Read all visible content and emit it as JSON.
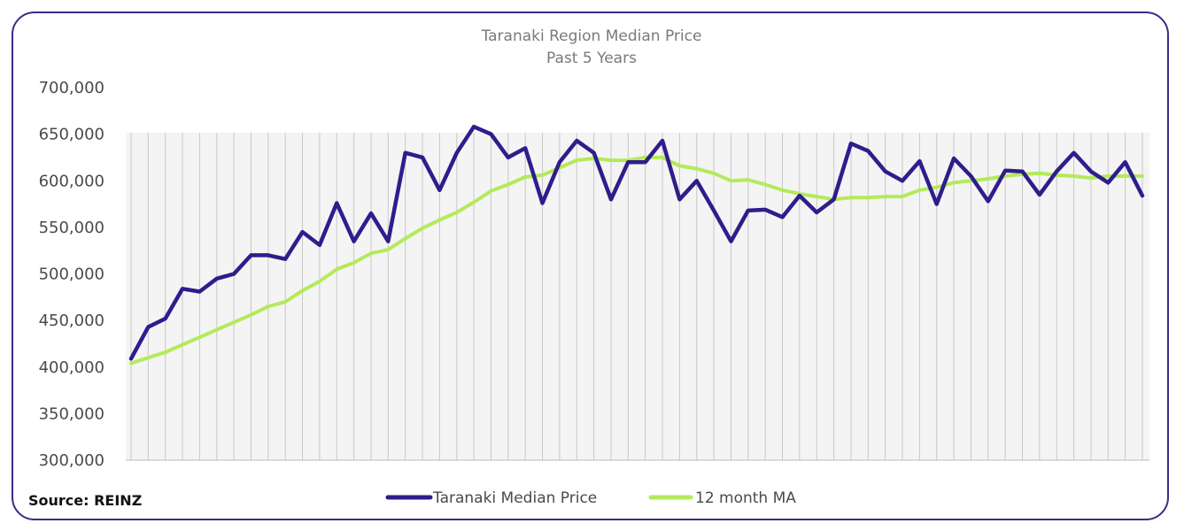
{
  "source": "Source: REINZ",
  "chart_data": {
    "type": "line",
    "title": "Taranaki Region Median Price",
    "subtitle": "Past 5 Years",
    "ylim": [
      300000,
      700000
    ],
    "yticks": [
      300000,
      350000,
      400000,
      450000,
      500000,
      550000,
      600000,
      650000,
      700000
    ],
    "ytick_labels": [
      "300,000",
      "350,000",
      "400,000",
      "450,000",
      "500,000",
      "550,000",
      "600,000",
      "650,000",
      "700,000"
    ],
    "grid": "vertical",
    "legend": "bottom",
    "colors": {
      "median": "#2e1d8c",
      "ma": "#b4ea5a",
      "grid": "#c8c8c8",
      "plot_bg": "#f4f4f4"
    },
    "series": [
      {
        "name": "Taranaki Median Price",
        "values": [
          409000,
          443000,
          452000,
          484000,
          481000,
          495000,
          500000,
          520000,
          520000,
          516000,
          545000,
          531000,
          576000,
          535000,
          565000,
          535000,
          630000,
          625000,
          590000,
          630000,
          658000,
          650000,
          625000,
          635000,
          576000,
          620000,
          643000,
          630000,
          580000,
          620000,
          620000,
          643000,
          580000,
          600000,
          568000,
          535000,
          568000,
          569000,
          561000,
          584000,
          566000,
          580000,
          640000,
          632000,
          610000,
          600000,
          621000,
          575000,
          624000,
          605000,
          578000,
          611000,
          610000,
          585000,
          610000,
          630000,
          610000,
          598000,
          620000,
          584000
        ]
      },
      {
        "name": "12 month MA",
        "values": [
          404000,
          410000,
          416000,
          424000,
          432000,
          440000,
          448000,
          456000,
          465000,
          470000,
          482000,
          492000,
          505000,
          512000,
          522000,
          526000,
          538000,
          549000,
          558000,
          566000,
          577000,
          589000,
          596000,
          604000,
          606000,
          614000,
          622000,
          624000,
          622000,
          622000,
          625000,
          625000,
          616000,
          613000,
          608000,
          600000,
          601000,
          596000,
          590000,
          586000,
          583000,
          580000,
          582000,
          582000,
          583000,
          583000,
          590000,
          593000,
          598000,
          600000,
          602000,
          605000,
          607000,
          608000,
          606000,
          605000,
          603000,
          605000,
          605000,
          605000
        ]
      }
    ]
  }
}
